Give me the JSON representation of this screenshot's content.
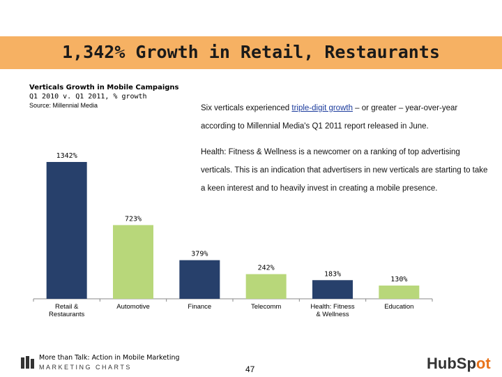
{
  "banner": {
    "title": "1,342% Growth in Retail, Restaurants",
    "color": "#f6b163"
  },
  "chart_info": {
    "title": "Verticals Growth in Mobile Campaigns",
    "subtitle": "Q1 2010 v. Q1 2011, % growth",
    "source": "Source: Millennial Media"
  },
  "body": {
    "p1_before": "Six verticals experienced ",
    "p1_link": "triple-digit growth",
    "p1_after": " – or greater – year-over-year according to Millennial Media's Q1 2011 report released in June.",
    "p2": "Health: Fitness & Wellness is a newcomer on a ranking of top advertising verticals. This is an indication that advertisers in new verticals are starting to take a keen interest and to heavily invest in creating a mobile presence."
  },
  "chart_data": {
    "type": "bar",
    "categories": [
      "Retail &\nRestaurants",
      "Automotive",
      "Finance",
      "Telecomm",
      "Health: Fitness\n& Wellness",
      "Education"
    ],
    "values": [
      1342,
      723,
      379,
      242,
      183,
      130
    ],
    "value_labels": [
      "1342%",
      "723%",
      "379%",
      "242%",
      "183%",
      "130%"
    ],
    "colors": [
      "#27406b",
      "#b8d77a",
      "#27406b",
      "#b8d77a",
      "#27406b",
      "#b8d77a"
    ],
    "ylim": [
      0,
      1342
    ],
    "grid": false,
    "legend": "none"
  },
  "footer": {
    "line1": "More than Talk: Action in Mobile Marketing",
    "line2": "MARKETING CHARTS",
    "page": "47",
    "brand_a": "HubSp",
    "brand_b": "ot"
  }
}
